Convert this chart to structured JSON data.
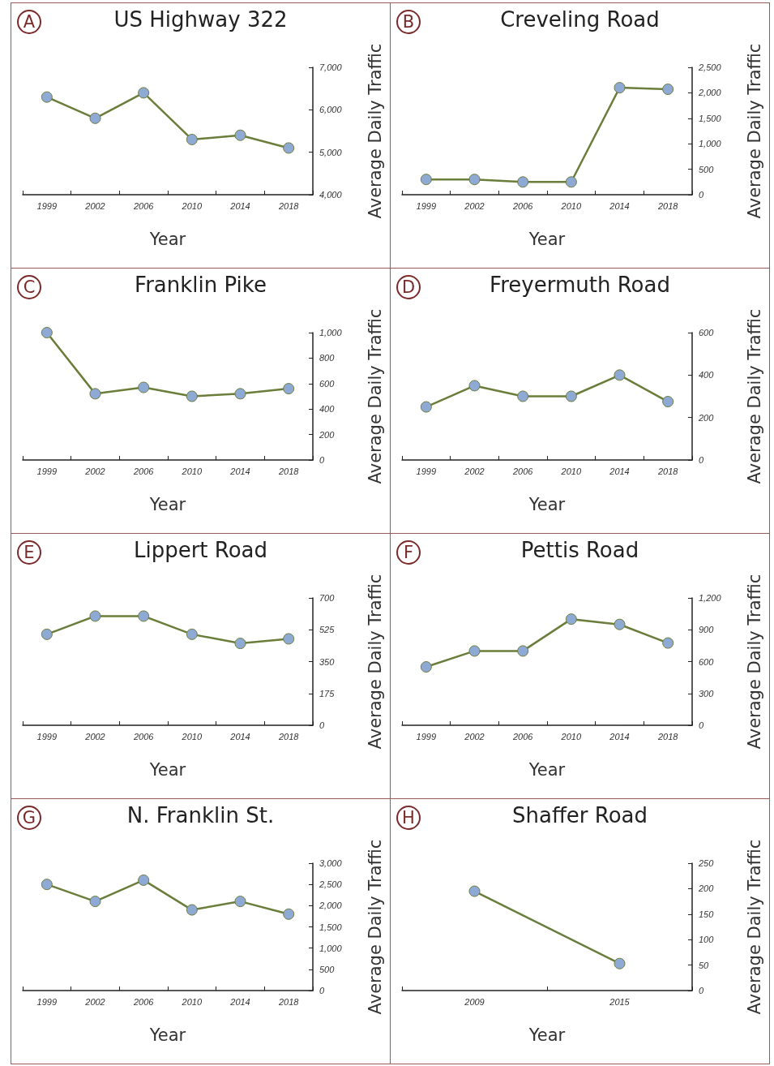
{
  "chart_data": [
    {
      "type": "line",
      "title": "US Highway 322",
      "xlabel": "Year",
      "ylabel": "Average Daily Traffic",
      "annotations": [
        "A"
      ],
      "categories": [
        "1999",
        "2002",
        "2006",
        "2010",
        "2014",
        "2018"
      ],
      "values": [
        6300,
        5800,
        6400,
        5300,
        5400,
        5100
      ],
      "color": "#6b7d3a",
      "ylim": [
        4000,
        7000
      ],
      "yticks": [
        {
          "value": 4000,
          "label": "4,000"
        },
        {
          "value": 5000,
          "label": "5,000"
        },
        {
          "value": 6000,
          "label": "6,000"
        },
        {
          "value": 7000,
          "label": "7,000"
        }
      ],
      "grid": false,
      "marker": "circle"
    },
    {
      "type": "line",
      "title": "Creveling Road",
      "xlabel": "Year",
      "ylabel": "Average Daily Traffic",
      "annotations": [
        "B"
      ],
      "categories": [
        "1999",
        "2002",
        "2006",
        "2010",
        "2014",
        "2018"
      ],
      "values": [
        300,
        300,
        250,
        250,
        2100,
        2070
      ],
      "color": "#6b7d3a",
      "ylim": [
        0,
        2500
      ],
      "yticks": [
        0,
        500,
        {
          "value": 1000,
          "label": "1,000"
        },
        {
          "value": 1500,
          "label": "1,500"
        },
        {
          "value": 2000,
          "label": "2,000"
        },
        {
          "value": 2500,
          "label": "2,500"
        }
      ],
      "grid": false,
      "marker": "circle"
    },
    {
      "type": "line",
      "title": "Franklin Pike",
      "xlabel": "Year",
      "ylabel": "Average Daily Traffic",
      "annotations": [
        "C"
      ],
      "categories": [
        "1999",
        "2002",
        "2006",
        "2010",
        "2014",
        "2018"
      ],
      "values": [
        1000,
        520,
        570,
        500,
        520,
        560
      ],
      "color": "#6b7d3a",
      "ylim": [
        0,
        1000
      ],
      "yticks": [
        0,
        200,
        400,
        600,
        800,
        {
          "value": 1000,
          "label": "1,000"
        }
      ],
      "grid": false,
      "marker": "circle"
    },
    {
      "type": "line",
      "title": "Freyermuth Road",
      "xlabel": "Year",
      "ylabel": "Average Daily Traffic",
      "annotations": [
        "D"
      ],
      "categories": [
        "1999",
        "2002",
        "2006",
        "2010",
        "2014",
        "2018"
      ],
      "values": [
        250,
        350,
        300,
        300,
        400,
        275
      ],
      "color": "#6b7d3a",
      "ylim": [
        0,
        600
      ],
      "yticks": [
        0,
        200,
        400,
        600
      ],
      "grid": false,
      "marker": "circle"
    },
    {
      "type": "line",
      "title": "Lippert Road",
      "xlabel": "Year",
      "ylabel": "Average Daily Traffic",
      "annotations": [
        "E"
      ],
      "categories": [
        "1999",
        "2002",
        "2006",
        "2010",
        "2014",
        "2018"
      ],
      "values": [
        500,
        600,
        600,
        500,
        450,
        475
      ],
      "color": "#6b7d3a",
      "ylim": [
        0,
        700
      ],
      "yticks": [
        0,
        175,
        350,
        525,
        700
      ],
      "grid": false,
      "marker": "circle"
    },
    {
      "type": "line",
      "title": "Pettis Road",
      "xlabel": "Year",
      "ylabel": "Average Daily Traffic",
      "annotations": [
        "F"
      ],
      "categories": [
        "1999",
        "2002",
        "2006",
        "2010",
        "2014",
        "2018"
      ],
      "values": [
        550,
        700,
        700,
        1000,
        950,
        775
      ],
      "color": "#6b7d3a",
      "ylim": [
        0,
        1200
      ],
      "yticks": [
        0,
        300,
        600,
        900,
        {
          "value": 1200,
          "label": "1,200"
        }
      ],
      "grid": false,
      "marker": "circle"
    },
    {
      "type": "line",
      "title": "N. Franklin St.",
      "xlabel": "Year",
      "ylabel": "Average Daily Traffic",
      "annotations": [
        "G"
      ],
      "categories": [
        "1999",
        "2002",
        "2006",
        "2010",
        "2014",
        "2018"
      ],
      "values": [
        2500,
        2100,
        2600,
        1900,
        2100,
        1800
      ],
      "color": "#6b7d3a",
      "ylim": [
        0,
        3000
      ],
      "yticks": [
        0,
        500,
        {
          "value": 1000,
          "label": "1,000"
        },
        {
          "value": 1500,
          "label": "1,500"
        },
        {
          "value": 2000,
          "label": "2,000"
        },
        {
          "value": 2500,
          "label": "2,500"
        },
        {
          "value": 3000,
          "label": "3,000"
        }
      ],
      "grid": false,
      "marker": "circle"
    },
    {
      "type": "line",
      "title": "Shaffer Road",
      "xlabel": "Year",
      "ylabel": "Average Daily Traffic",
      "annotations": [
        "H"
      ],
      "categories": [
        "2009",
        "2015"
      ],
      "values": [
        195,
        53
      ],
      "color": "#6b7d3a",
      "ylim": [
        0,
        250
      ],
      "yticks": [
        0,
        50,
        100,
        150,
        200,
        250
      ],
      "grid": false,
      "marker": "circle"
    }
  ]
}
